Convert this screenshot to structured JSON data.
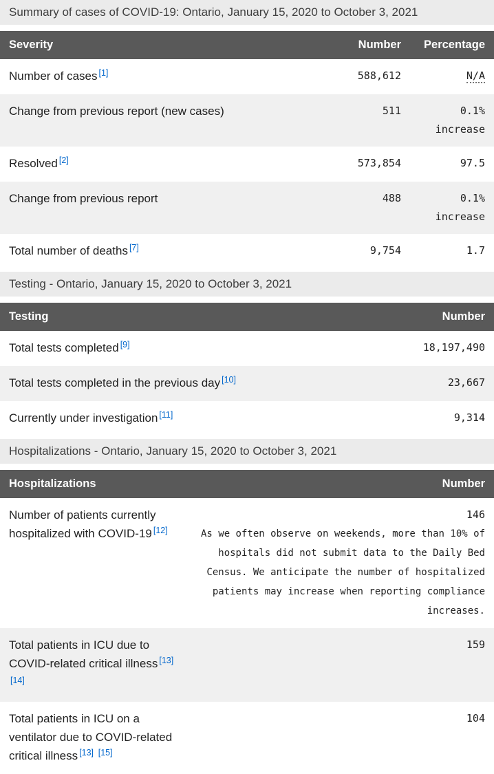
{
  "colors": {
    "header_bg": "#595959",
    "header_text": "#ffffff",
    "caption_bg": "#ebebeb",
    "stripe_bg": "#f0f0f0",
    "link_blue": "#0066cc",
    "body_text": "#222222"
  },
  "tables": [
    {
      "caption": "Summary of cases of COVID-19: Ontario, January 15, 2020 to October 3, 2021",
      "columns": [
        "Severity",
        "Number",
        "Percentage"
      ],
      "rows": [
        {
          "label": "Number of cases",
          "refs": [
            "[1]"
          ],
          "number": "588,612",
          "percentage": "N/A"
        },
        {
          "label": "Change from previous report (new cases)",
          "refs": [],
          "number": "511",
          "percentage": "0.1% increase"
        },
        {
          "label": "Resolved",
          "refs": [
            "[2]"
          ],
          "number": "573,854",
          "percentage": "97.5"
        },
        {
          "label": "Change from previous report",
          "refs": [],
          "number": "488",
          "percentage": "0.1% increase"
        },
        {
          "label": "Total number of deaths",
          "refs": [
            "[7]"
          ],
          "number": "9,754",
          "percentage": "1.7"
        }
      ]
    },
    {
      "caption": "Testing - Ontario, January 15, 2020 to October 3, 2021",
      "columns": [
        "Testing",
        "Number"
      ],
      "rows": [
        {
          "label": "Total tests completed",
          "refs": [
            "[9]"
          ],
          "number": "18,197,490"
        },
        {
          "label": "Total tests completed in the previous day",
          "refs": [
            "[10]"
          ],
          "number": "23,667"
        },
        {
          "label": "Currently under investigation",
          "refs": [
            "[11]"
          ],
          "number": "9,314"
        }
      ]
    },
    {
      "caption": "Hospitalizations - Ontario, January 15, 2020 to October 3, 2021",
      "columns": [
        "Hospitalizations",
        "Number"
      ],
      "rows": [
        {
          "label": "Number of patients currently hospitalized with COVID-19",
          "refs": [
            "[12]"
          ],
          "number": "146",
          "note": "As we often observe on weekends, more than 10% of hospitals did not submit data to the Daily Bed Census. We anticipate the number of hospitalized patients may increase when reporting compliance increases."
        },
        {
          "label": "Total patients in ICU due to COVID-related critical illness",
          "refs": [
            "[13]",
            "[14]"
          ],
          "number": "159"
        },
        {
          "label": "Total patients in ICU on a ventilator due to COVID-related critical illness",
          "refs": [
            "[13]",
            "[15]"
          ],
          "number": "104"
        }
      ]
    }
  ]
}
